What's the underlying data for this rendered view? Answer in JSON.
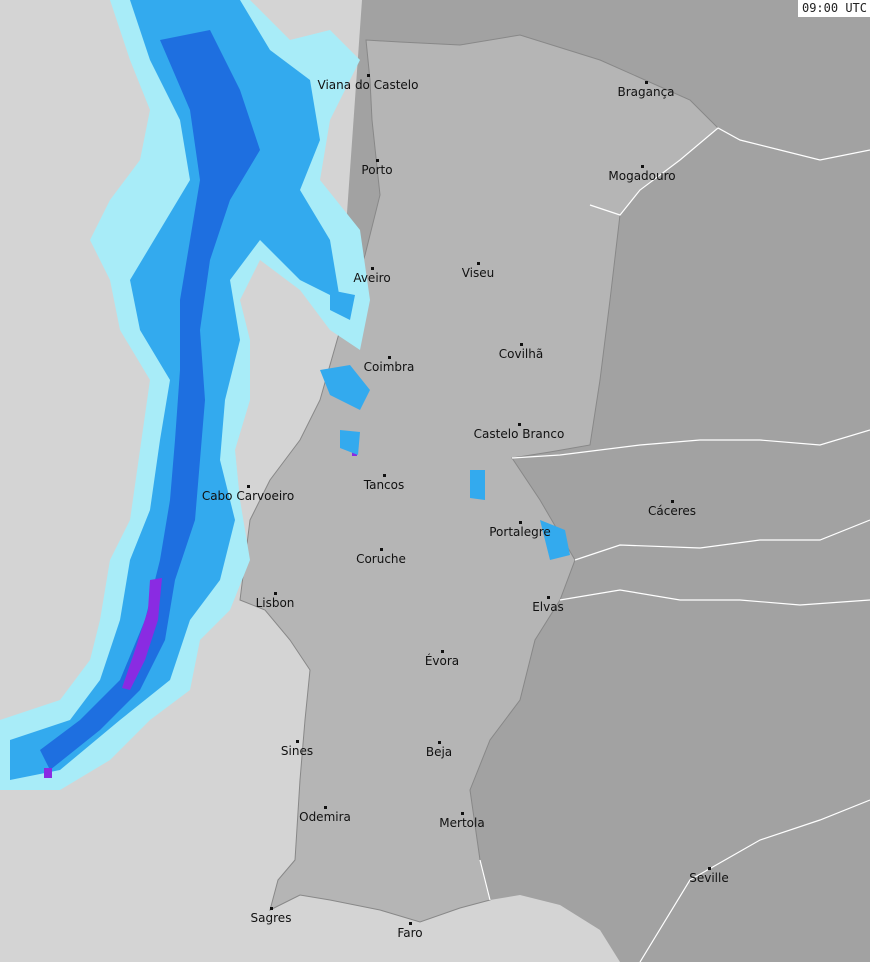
{
  "timestamp": "09:00 UTC",
  "colors": {
    "sea": "#d4d4d4",
    "portugal": "#b5b5b5",
    "spain": "#a2a2a2",
    "border": "#ffffff",
    "rain_light": "#a8ecf8",
    "rain_mid": "#33aaee",
    "rain_heavy": "#1e6fe0",
    "rain_extreme": "#8a2be2"
  },
  "cities": [
    {
      "name": "Viana do Castelo"
    },
    {
      "name": "Bragança"
    },
    {
      "name": "Porto"
    },
    {
      "name": "Mogadouro"
    },
    {
      "name": "Aveiro"
    },
    {
      "name": "Viseu"
    },
    {
      "name": "Covilhã"
    },
    {
      "name": "Coimbra"
    },
    {
      "name": "Castelo Branco"
    },
    {
      "name": "Tancos"
    },
    {
      "name": "Cabo Carvoeiro"
    },
    {
      "name": "Cáceres"
    },
    {
      "name": "Portalegre"
    },
    {
      "name": "Coruche"
    },
    {
      "name": "Lisbon"
    },
    {
      "name": "Elvas"
    },
    {
      "name": "Évora"
    },
    {
      "name": "Sines"
    },
    {
      "name": "Beja"
    },
    {
      "name": "Odemira"
    },
    {
      "name": "Mertola"
    },
    {
      "name": "Seville"
    },
    {
      "name": "Sagres"
    },
    {
      "name": "Faro"
    }
  ]
}
